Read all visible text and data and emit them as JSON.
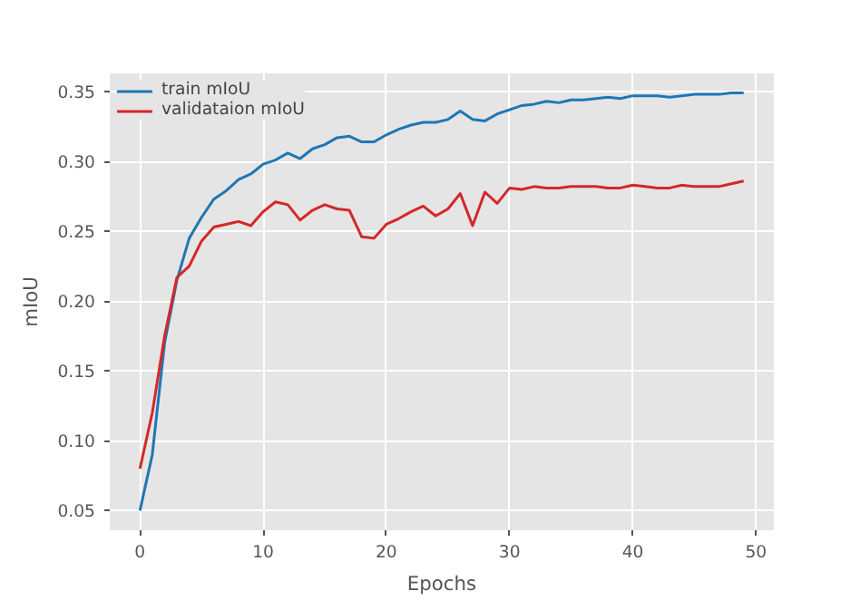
{
  "chart_data": {
    "type": "line",
    "xlabel": "Epochs",
    "ylabel": "mIoU",
    "xlim": [
      -2.45,
      51.45
    ],
    "xticks": [
      0,
      10,
      20,
      30,
      40,
      50
    ],
    "ylim": [
      0.036,
      0.363
    ],
    "yticks": [
      0.05,
      {
        "value": 0.1,
        "label": "0.10"
      },
      0.15,
      {
        "value": 0.2,
        "label": "0.20"
      },
      0.25,
      {
        "value": 0.3,
        "label": "0.30"
      },
      0.35
    ],
    "grid": true,
    "legend": "top left",
    "line_style": "solid",
    "x": [
      0,
      1,
      2,
      3,
      4,
      5,
      6,
      7,
      8,
      9,
      10,
      11,
      12,
      13,
      14,
      15,
      16,
      17,
      18,
      19,
      20,
      21,
      22,
      23,
      24,
      25,
      26,
      27,
      28,
      29,
      30,
      31,
      32,
      33,
      34,
      35,
      36,
      37,
      38,
      39,
      40,
      41,
      42,
      43,
      44,
      45,
      46,
      47,
      48,
      49
    ],
    "series": [
      {
        "name": "train mIoU",
        "color": "#1f77b4",
        "values": [
          0.05,
          0.09,
          0.17,
          0.215,
          0.245,
          0.26,
          0.273,
          0.279,
          0.287,
          0.291,
          0.298,
          0.301,
          0.306,
          0.302,
          0.309,
          0.312,
          0.317,
          0.318,
          0.314,
          0.314,
          0.319,
          0.323,
          0.326,
          0.328,
          0.328,
          0.33,
          0.336,
          0.33,
          0.329,
          0.334,
          0.337,
          0.34,
          0.341,
          0.343,
          0.342,
          0.344,
          0.344,
          0.345,
          0.346,
          0.345,
          0.347,
          0.347,
          0.347,
          0.346,
          0.347,
          0.348,
          0.348,
          0.348,
          0.349,
          0.349
        ]
      },
      {
        "name": "validataion mIoU",
        "color": "#d62728",
        "values": [
          0.08,
          0.12,
          0.175,
          0.217,
          0.225,
          0.243,
          0.253,
          0.255,
          0.257,
          0.254,
          0.264,
          0.271,
          0.269,
          0.258,
          0.265,
          0.269,
          0.266,
          0.265,
          0.246,
          0.245,
          0.255,
          0.259,
          0.264,
          0.268,
          0.261,
          0.266,
          0.277,
          0.254,
          0.278,
          0.27,
          0.281,
          0.28,
          0.282,
          0.281,
          0.281,
          0.282,
          0.282,
          0.282,
          0.281,
          0.281,
          0.283,
          0.282,
          0.281,
          0.281,
          0.283,
          0.282,
          0.282,
          0.282,
          0.284,
          0.286
        ]
      }
    ]
  }
}
